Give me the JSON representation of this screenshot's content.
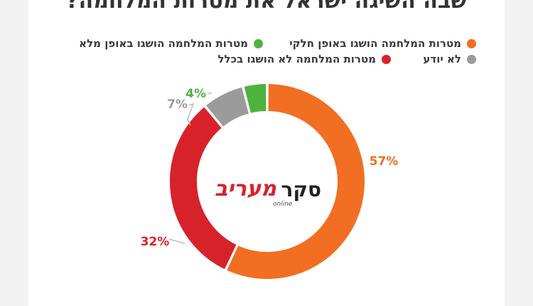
{
  "title": "שבה השיגה ישראל את מטרות המלחמה?",
  "colors": {
    "partial": "#f26e22",
    "none": "#d8222a",
    "dontknow": "#9b9b9b",
    "full": "#4db33d",
    "leader": "#bbbbbb"
  },
  "logo": {
    "survey": "סקר",
    "brand": "מעריב",
    "sub": "online"
  },
  "chart_data": {
    "type": "pie",
    "subtype": "donut",
    "title": "שבה השיגה ישראל את מטרות המלחמה?",
    "legend_position": "top",
    "slices": [
      {
        "key": "partial",
        "label": "מטרות המלחמה הושגו באופן חלקי",
        "value": 57,
        "display": "57%"
      },
      {
        "key": "none",
        "label": "מטרות המלחמה לא הושגו בכלל",
        "value": 32,
        "display": "32%"
      },
      {
        "key": "dontknow",
        "label": "לא יודע",
        "value": 7,
        "display": "7%"
      },
      {
        "key": "full",
        "label": "מטרות המלחמה הושגו באופן מלא",
        "value": 4,
        "display": "4%"
      }
    ]
  }
}
